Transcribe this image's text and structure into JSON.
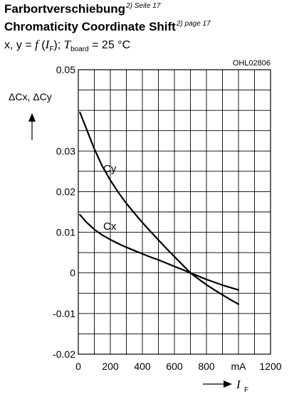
{
  "header": {
    "title_de": "Farbortverschiebung",
    "title_de_ref": "2) Seite 17",
    "title_en": "Chromaticity Coordinate Shift",
    "title_en_ref": "2) page 17",
    "condition": {
      "prefix": "x, y = ",
      "f": "f",
      "open": " (",
      "var": "I",
      "var_sub": "F",
      "close": "); ",
      "tvar": "T",
      "tvar_sub": "board",
      "rest": " = 25 °C"
    }
  },
  "chart_data": {
    "type": "line",
    "code": "OHL02806",
    "ylabel": "ΔCx, ΔCy",
    "xlabel": "I",
    "xlabel_sub": "F",
    "x_unit": "mA",
    "xlim": [
      0,
      1200
    ],
    "ylim": [
      -0.02,
      0.05
    ],
    "x_ticks": [
      "0",
      "200",
      "400",
      "600",
      "800",
      "mA",
      "1200"
    ],
    "x_tick_values": [
      0,
      200,
      400,
      600,
      800,
      1000,
      1200
    ],
    "y_ticks": [
      "0.05",
      "0.03",
      "0.02",
      "0.01",
      "0",
      "-0.01",
      "-0.02"
    ],
    "y_tick_values": [
      0.05,
      0.03,
      0.02,
      0.01,
      0,
      -0.01,
      -0.02
    ],
    "grid": true,
    "series": [
      {
        "name": "Cy",
        "x": [
          10,
          50,
          100,
          150,
          200,
          250,
          300,
          350,
          400,
          450,
          500,
          550,
          600,
          650,
          700,
          750,
          800,
          850,
          900,
          950,
          1000
        ],
        "y": [
          0.0395,
          0.0355,
          0.0305,
          0.0262,
          0.0228,
          0.0198,
          0.0171,
          0.0147,
          0.0124,
          0.0102,
          0.0081,
          0.006,
          0.004,
          0.002,
          0.0,
          -0.0015,
          -0.0029,
          -0.0042,
          -0.0054,
          -0.0066,
          -0.0077
        ]
      },
      {
        "name": "Cx",
        "x": [
          10,
          50,
          100,
          150,
          200,
          250,
          300,
          350,
          400,
          450,
          500,
          550,
          600,
          650,
          700,
          750,
          800,
          850,
          900,
          950,
          1000
        ],
        "y": [
          0.0143,
          0.0125,
          0.0107,
          0.0093,
          0.0082,
          0.0072,
          0.0063,
          0.0055,
          0.0047,
          0.0039,
          0.0032,
          0.0024,
          0.0016,
          0.0008,
          0.0,
          -0.0008,
          -0.0016,
          -0.0023,
          -0.003,
          -0.0036,
          -0.0042
        ]
      }
    ]
  }
}
